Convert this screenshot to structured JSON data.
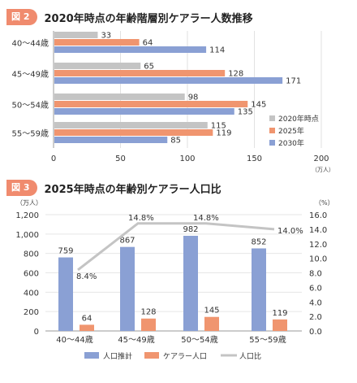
{
  "figure2": {
    "badge": "図 2",
    "title": "2020年時点の年齢階層別ケアラー人数推移"
  },
  "figure3": {
    "badge": "図 3",
    "title": "2025年時点の年齢別ケアラー人口比"
  },
  "colors": {
    "s2020": "#c4c4c4",
    "s2025": "#f0956f",
    "s2030": "#8aa0d4",
    "ratio_line": "#c4c4c4",
    "badge": "#f08b6e"
  },
  "chart_data": [
    {
      "type": "bar",
      "orientation": "horizontal",
      "categories": [
        "40～44歳",
        "45～49歳",
        "50～54歳",
        "55～59歳"
      ],
      "series": [
        {
          "name": "2020年時点",
          "values": [
            33,
            65,
            98,
            115
          ]
        },
        {
          "name": "2025年",
          "values": [
            64,
            128,
            145,
            119
          ]
        },
        {
          "name": "2030年",
          "values": [
            114,
            171,
            135,
            85
          ]
        }
      ],
      "xlim": [
        0,
        200
      ],
      "xticks": [
        "0",
        "50",
        "100",
        "150",
        "200"
      ],
      "xunit": "（万人）",
      "legend_position": "bottom-right",
      "grid": true
    },
    {
      "type": "bar+line",
      "categories": [
        "40～44歳",
        "45～49歳",
        "50～54歳",
        "55～59歳"
      ],
      "series": [
        {
          "name": "人口推計",
          "kind": "bar",
          "axis": "left",
          "values": [
            759,
            867,
            982,
            852
          ]
        },
        {
          "name": "ケアラー人口",
          "kind": "bar",
          "axis": "left",
          "values": [
            64,
            128,
            145,
            119
          ]
        },
        {
          "name": "人口比",
          "kind": "line",
          "axis": "right",
          "values": [
            8.4,
            14.8,
            14.8,
            14.0
          ],
          "labels": [
            "8.4%",
            "14.8%",
            "14.8%",
            "14.0%"
          ]
        }
      ],
      "ylim_left": [
        0,
        1200
      ],
      "yticks_left": [
        "0",
        "200",
        "400",
        "600",
        "800",
        "1,000",
        "1,200"
      ],
      "yunit_left": "（万人）",
      "ylim_right": [
        0,
        16
      ],
      "yticks_right": [
        "0.0",
        "2.0",
        "4.0",
        "6.0",
        "8.0",
        "10.0",
        "12.0",
        "14.0",
        "16.0"
      ],
      "yunit_right": "（%）",
      "legend_position": "bottom",
      "grid": true
    }
  ]
}
